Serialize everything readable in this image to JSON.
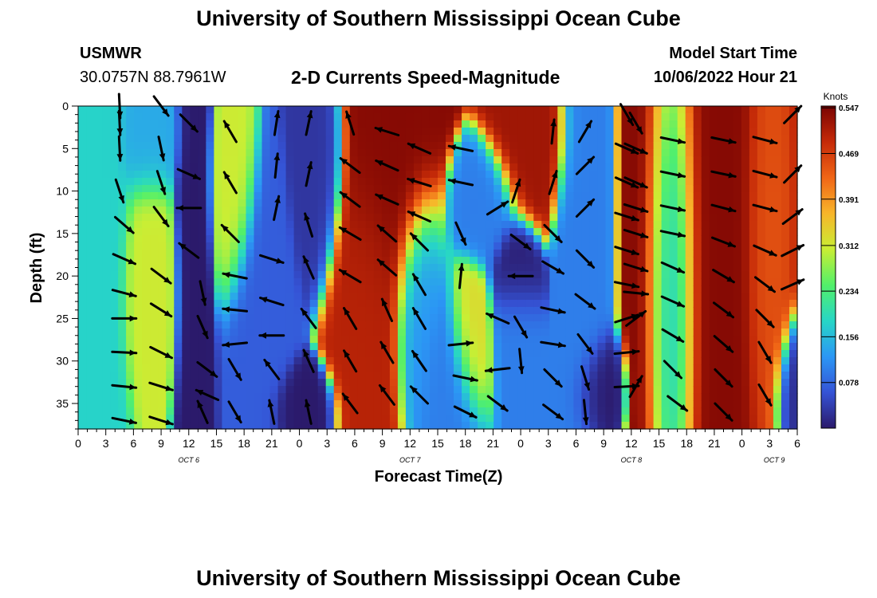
{
  "header": {
    "title": "University of Southern Mississippi Ocean Cube",
    "station": "USMWR",
    "coordinates": "30.0757N  88.7961W",
    "subtitle": "2-D Currents Speed-Magnitude",
    "model_start_label": "Model Start Time",
    "model_start_value": "10/06/2022 Hour 21",
    "footer_title": "University of Southern Mississippi Ocean Cube"
  },
  "colors": {
    "arrow": "#000000",
    "scale": [
      "#2b1a6b",
      "#3553d6",
      "#2b97f5",
      "#27d6c6",
      "#52f06a",
      "#c9ee34",
      "#f8b52a",
      "#f06516",
      "#c52a08",
      "#7a0403"
    ]
  },
  "chart_data": {
    "type": "heatmap",
    "title": "2-D Currents Speed-Magnitude",
    "xlabel": "Forecast Time(Z)",
    "ylabel": "Depth (ft)",
    "x_range": [
      0,
      78
    ],
    "y_range": [
      0,
      38
    ],
    "y_inverted": true,
    "x_tick_values": [
      0,
      3,
      6,
      9,
      12,
      15,
      18,
      21,
      24,
      27,
      30,
      33,
      36,
      39,
      42,
      45,
      48,
      51,
      54,
      57,
      60,
      63,
      66,
      69,
      72,
      75,
      78
    ],
    "x_tick_labels": [
      "0",
      "3",
      "6",
      "9",
      "12",
      "15",
      "18",
      "21",
      "0",
      "3",
      "6",
      "9",
      "12",
      "15",
      "18",
      "21",
      "0",
      "3",
      "6",
      "9",
      "12",
      "15",
      "18",
      "21",
      "0",
      "3",
      "6"
    ],
    "y_ticks": [
      0,
      5,
      10,
      15,
      20,
      25,
      30,
      35
    ],
    "date_labels": [
      {
        "x": 12,
        "text": "OCT 6"
      },
      {
        "x": 36,
        "text": "OCT 7"
      },
      {
        "x": 60,
        "text": "OCT 8"
      },
      {
        "x": 75.5,
        "text": "OCT 9"
      }
    ],
    "colorbar": {
      "label": "Knots",
      "range": [
        0.0,
        0.55
      ],
      "ticks": [
        0.078,
        0.156,
        0.234,
        0.312,
        0.391,
        0.469,
        0.547
      ],
      "tick_labels": [
        "0.078",
        "0.156",
        "0.234",
        "0.312",
        "0.391",
        "0.469",
        "0.547"
      ]
    },
    "speed_features": [
      {
        "x": 0,
        "y": 19,
        "sx": 3.0,
        "sy": 30,
        "v": 0.18
      },
      {
        "x": 8,
        "y": 22,
        "sx": 1.7,
        "sy": 9,
        "v": 0.31
      },
      {
        "x": 8,
        "y": 3,
        "sx": 2.0,
        "sy": 5,
        "v": 0.14
      },
      {
        "x": 12.5,
        "y": 20,
        "sx": 1.2,
        "sy": 30,
        "v": 0.0
      },
      {
        "x": 16.8,
        "y": 9,
        "sx": 1.4,
        "sy": 8,
        "v": 0.31
      },
      {
        "x": 19.5,
        "y": 28,
        "sx": 2.0,
        "sy": 12,
        "v": 0.07
      },
      {
        "x": 26,
        "y": 5,
        "sx": 1.6,
        "sy": 8,
        "v": 0.03
      },
      {
        "x": 24,
        "y": 36,
        "sx": 2.0,
        "sy": 3,
        "v": 0.0
      },
      {
        "x": 33.5,
        "y": 5,
        "sx": 3.0,
        "sy": 13,
        "v": 0.54
      },
      {
        "x": 31.5,
        "y": 24,
        "sx": 2.2,
        "sy": 11,
        "v": 0.5
      },
      {
        "x": 37,
        "y": 24,
        "sx": 1.6,
        "sy": 8,
        "v": 0.12
      },
      {
        "x": 40,
        "y": 32,
        "sx": 2.0,
        "sy": 6,
        "v": 0.1
      },
      {
        "x": 42.5,
        "y": 27,
        "sx": 1.4,
        "sy": 5,
        "v": 0.33
      },
      {
        "x": 44,
        "y": 12,
        "sx": 2.0,
        "sy": 4,
        "v": 0.1
      },
      {
        "x": 47.5,
        "y": 20,
        "sx": 1.5,
        "sy": 4,
        "v": 0.0
      },
      {
        "x": 47.5,
        "y": 26,
        "sx": 1.5,
        "sy": 5,
        "v": 0.1
      },
      {
        "x": 49,
        "y": 3,
        "sx": 2.4,
        "sy": 6,
        "v": 0.52
      },
      {
        "x": 54.5,
        "y": 18,
        "sx": 1.5,
        "sy": 25,
        "v": 0.1
      },
      {
        "x": 56,
        "y": 34,
        "sx": 1.4,
        "sy": 4,
        "v": 0.0
      },
      {
        "x": 69,
        "y": 15,
        "sx": 4.0,
        "sy": 28,
        "v": 0.54
      },
      {
        "x": 65,
        "y": 20,
        "sx": 1.5,
        "sy": 20,
        "v": 0.1
      },
      {
        "x": 74.5,
        "y": 15,
        "sx": 1.5,
        "sy": 18,
        "v": 0.44
      },
      {
        "x": 78,
        "y": 35,
        "sx": 1.5,
        "sy": 5,
        "v": 0.02
      }
    ],
    "current_vectors": [
      {
        "t": 4.5,
        "d": 0,
        "u": 0.05,
        "v": -0.95
      },
      {
        "t": 4.5,
        "d": 2,
        "u": 0.05,
        "v": -0.95
      },
      {
        "t": 4.5,
        "d": 5,
        "u": 0.05,
        "v": -0.95
      },
      {
        "t": 4.5,
        "d": 10,
        "u": 0.3,
        "v": -0.9
      },
      {
        "t": 5.0,
        "d": 14,
        "u": 0.75,
        "v": -0.65
      },
      {
        "t": 5.0,
        "d": 18,
        "u": 0.9,
        "v": -0.4
      },
      {
        "t": 5.0,
        "d": 22,
        "u": 0.95,
        "v": -0.25
      },
      {
        "t": 5.0,
        "d": 25,
        "u": 1.0,
        "v": 0.0
      },
      {
        "t": 5.0,
        "d": 29,
        "u": 1.0,
        "v": -0.05
      },
      {
        "t": 5.0,
        "d": 33,
        "u": 1.0,
        "v": -0.1
      },
      {
        "t": 5.0,
        "d": 37,
        "u": 0.95,
        "v": -0.2
      },
      {
        "t": 9.0,
        "d": 0,
        "u": 0.6,
        "v": -0.8
      },
      {
        "t": 9.0,
        "d": 5,
        "u": 0.2,
        "v": -0.95
      },
      {
        "t": 9.0,
        "d": 9,
        "u": 0.3,
        "v": -0.9
      },
      {
        "t": 9.0,
        "d": 13,
        "u": 0.6,
        "v": -0.8
      },
      {
        "t": 9.0,
        "d": 20,
        "u": 0.8,
        "v": -0.6
      },
      {
        "t": 9.0,
        "d": 24,
        "u": 0.8,
        "v": -0.5
      },
      {
        "t": 9.0,
        "d": 29,
        "u": 0.9,
        "v": -0.45
      },
      {
        "t": 9.0,
        "d": 33,
        "u": 0.95,
        "v": -0.3
      },
      {
        "t": 9.0,
        "d": 37,
        "u": 0.95,
        "v": -0.3
      },
      {
        "t": 12.0,
        "d": 2,
        "u": 0.7,
        "v": -0.7
      },
      {
        "t": 12.0,
        "d": 8,
        "u": 0.9,
        "v": -0.4
      },
      {
        "t": 12.0,
        "d": 12,
        "u": -1.0,
        "v": 0.0
      },
      {
        "t": 12.0,
        "d": 17,
        "u": -0.8,
        "v": 0.6
      },
      {
        "t": 13.5,
        "d": 22,
        "u": 0.2,
        "v": -0.95
      },
      {
        "t": 13.5,
        "d": 26,
        "u": 0.4,
        "v": -0.9
      },
      {
        "t": 14.0,
        "d": 31,
        "u": 0.8,
        "v": -0.6
      },
      {
        "t": 14.0,
        "d": 34,
        "u": -0.9,
        "v": 0.4
      },
      {
        "t": 13.5,
        "d": 36,
        "u": -0.4,
        "v": 0.9
      },
      {
        "t": 16.5,
        "d": 3,
        "u": -0.5,
        "v": 0.85
      },
      {
        "t": 16.5,
        "d": 9,
        "u": -0.5,
        "v": 0.85
      },
      {
        "t": 16.5,
        "d": 15,
        "u": -0.7,
        "v": 0.7
      },
      {
        "t": 17.0,
        "d": 20,
        "u": -1.0,
        "v": 0.2
      },
      {
        "t": 17.0,
        "d": 24,
        "u": -1.0,
        "v": 0.1
      },
      {
        "t": 17.0,
        "d": 28,
        "u": -1.0,
        "v": -0.1
      },
      {
        "t": 17.0,
        "d": 31,
        "u": 0.5,
        "v": -0.85
      },
      {
        "t": 17.0,
        "d": 36,
        "u": 0.5,
        "v": -0.85
      },
      {
        "t": 21.5,
        "d": 2,
        "u": 0.15,
        "v": 0.98
      },
      {
        "t": 21.5,
        "d": 7,
        "u": 0.1,
        "v": 0.98
      },
      {
        "t": 21.5,
        "d": 12,
        "u": 0.2,
        "v": 0.97
      },
      {
        "t": 21.0,
        "d": 18,
        "u": 0.95,
        "v": -0.3
      },
      {
        "t": 21.0,
        "d": 23,
        "u": -0.95,
        "v": 0.3
      },
      {
        "t": 21.0,
        "d": 27,
        "u": -1.0,
        "v": 0.0
      },
      {
        "t": 21.0,
        "d": 31,
        "u": -0.6,
        "v": 0.8
      },
      {
        "t": 21.0,
        "d": 36,
        "u": -0.2,
        "v": 0.95
      },
      {
        "t": 25.0,
        "d": 2,
        "u": 0.2,
        "v": 0.95
      },
      {
        "t": 25.0,
        "d": 8,
        "u": 0.2,
        "v": 0.95
      },
      {
        "t": 25.0,
        "d": 14,
        "u": -0.3,
        "v": 0.95
      },
      {
        "t": 25.0,
        "d": 19,
        "u": -0.4,
        "v": 0.9
      },
      {
        "t": 25.0,
        "d": 25,
        "u": -0.6,
        "v": 0.8
      },
      {
        "t": 25.0,
        "d": 30,
        "u": -0.4,
        "v": 0.9
      },
      {
        "t": 25.0,
        "d": 36,
        "u": -0.2,
        "v": 0.95
      },
      {
        "t": 29.5,
        "d": 2,
        "u": -0.3,
        "v": 0.95
      },
      {
        "t": 29.5,
        "d": 7,
        "u": -0.8,
        "v": 0.6
      },
      {
        "t": 29.5,
        "d": 11,
        "u": -0.8,
        "v": 0.6
      },
      {
        "t": 29.5,
        "d": 15,
        "u": -0.85,
        "v": 0.5
      },
      {
        "t": 29.5,
        "d": 20,
        "u": -0.85,
        "v": 0.5
      },
      {
        "t": 29.5,
        "d": 25,
        "u": -0.5,
        "v": 0.85
      },
      {
        "t": 29.5,
        "d": 30,
        "u": -0.5,
        "v": 0.85
      },
      {
        "t": 29.5,
        "d": 35,
        "u": -0.6,
        "v": 0.8
      },
      {
        "t": 33.5,
        "d": 3,
        "u": -0.95,
        "v": 0.3
      },
      {
        "t": 33.5,
        "d": 7,
        "u": -0.9,
        "v": 0.4
      },
      {
        "t": 33.5,
        "d": 11,
        "u": -0.9,
        "v": 0.4
      },
      {
        "t": 33.5,
        "d": 15,
        "u": -0.75,
        "v": 0.65
      },
      {
        "t": 33.5,
        "d": 19,
        "u": -0.75,
        "v": 0.65
      },
      {
        "t": 33.5,
        "d": 24,
        "u": -0.4,
        "v": 0.9
      },
      {
        "t": 33.5,
        "d": 29,
        "u": -0.5,
        "v": 0.85
      },
      {
        "t": 33.5,
        "d": 34,
        "u": -0.6,
        "v": 0.8
      },
      {
        "t": 37.0,
        "d": 5,
        "u": -0.9,
        "v": 0.4
      },
      {
        "t": 37.0,
        "d": 9,
        "u": -0.95,
        "v": 0.3
      },
      {
        "t": 37.0,
        "d": 13,
        "u": -0.9,
        "v": 0.4
      },
      {
        "t": 37.0,
        "d": 16,
        "u": -0.7,
        "v": 0.7
      },
      {
        "t": 37.0,
        "d": 21,
        "u": -0.5,
        "v": 0.85
      },
      {
        "t": 37.0,
        "d": 25,
        "u": -0.5,
        "v": 0.85
      },
      {
        "t": 37.0,
        "d": 30,
        "u": -0.55,
        "v": 0.8
      },
      {
        "t": 37.0,
        "d": 34,
        "u": -0.7,
        "v": 0.7
      },
      {
        "t": 41.5,
        "d": 5,
        "u": -0.95,
        "v": 0.2
      },
      {
        "t": 41.5,
        "d": 9,
        "u": -0.95,
        "v": 0.2
      },
      {
        "t": 41.5,
        "d": 15,
        "u": 0.4,
        "v": -0.9
      },
      {
        "t": 41.5,
        "d": 20,
        "u": 0.1,
        "v": 1.0
      },
      {
        "t": 41.5,
        "d": 28,
        "u": 0.95,
        "v": 0.1
      },
      {
        "t": 42.0,
        "d": 32,
        "u": 0.95,
        "v": -0.2
      },
      {
        "t": 42.0,
        "d": 36,
        "u": 0.9,
        "v": -0.45
      },
      {
        "t": 45.5,
        "d": 12,
        "u": 0.8,
        "v": 0.5
      },
      {
        "t": 45.5,
        "d": 25,
        "u": -0.9,
        "v": 0.4
      },
      {
        "t": 45.5,
        "d": 31,
        "u": -0.9,
        "v": -0.1
      },
      {
        "t": 45.5,
        "d": 35,
        "u": 0.8,
        "v": -0.6
      },
      {
        "t": 47.5,
        "d": 10,
        "u": 0.3,
        "v": 0.9
      },
      {
        "t": 48.0,
        "d": 16,
        "u": 0.8,
        "v": -0.6
      },
      {
        "t": 48.0,
        "d": 20,
        "u": -1.0,
        "v": 0.0
      },
      {
        "t": 48.0,
        "d": 26,
        "u": 0.5,
        "v": -0.85
      },
      {
        "t": 48.0,
        "d": 30,
        "u": 0.1,
        "v": -0.99
      },
      {
        "t": 51.5,
        "d": 3,
        "u": 0.1,
        "v": 0.99
      },
      {
        "t": 51.5,
        "d": 9,
        "u": 0.3,
        "v": 0.95
      },
      {
        "t": 51.5,
        "d": 15,
        "u": 0.7,
        "v": -0.7
      },
      {
        "t": 51.5,
        "d": 19,
        "u": 0.85,
        "v": -0.5
      },
      {
        "t": 51.5,
        "d": 24,
        "u": 0.95,
        "v": -0.2
      },
      {
        "t": 51.5,
        "d": 28,
        "u": 0.95,
        "v": -0.15
      },
      {
        "t": 51.5,
        "d": 32,
        "u": 0.7,
        "v": -0.7
      },
      {
        "t": 51.5,
        "d": 36,
        "u": 0.8,
        "v": -0.6
      },
      {
        "t": 55.0,
        "d": 3,
        "u": 0.5,
        "v": 0.85
      },
      {
        "t": 55.0,
        "d": 7,
        "u": 0.7,
        "v": 0.7
      },
      {
        "t": 55.0,
        "d": 12,
        "u": 0.7,
        "v": 0.7
      },
      {
        "t": 55.0,
        "d": 18,
        "u": 0.7,
        "v": -0.7
      },
      {
        "t": 55.0,
        "d": 23,
        "u": 0.8,
        "v": -0.6
      },
      {
        "t": 55.0,
        "d": 28,
        "u": 0.6,
        "v": -0.8
      },
      {
        "t": 55.0,
        "d": 32,
        "u": 0.3,
        "v": -0.95
      },
      {
        "t": 55.0,
        "d": 36,
        "u": 0.1,
        "v": -0.99
      },
      {
        "t": 59.5,
        "d": 1,
        "u": 0.5,
        "v": -0.85
      },
      {
        "t": 59.5,
        "d": 5,
        "u": 0.9,
        "v": -0.4
      },
      {
        "t": 59.5,
        "d": 9,
        "u": 0.9,
        "v": -0.4
      },
      {
        "t": 59.5,
        "d": 13,
        "u": 0.95,
        "v": -0.3
      },
      {
        "t": 59.5,
        "d": 17,
        "u": 0.95,
        "v": -0.3
      },
      {
        "t": 59.5,
        "d": 21,
        "u": 0.98,
        "v": -0.2
      },
      {
        "t": 59.5,
        "d": 25,
        "u": 0.95,
        "v": 0.3
      },
      {
        "t": 59.5,
        "d": 29,
        "u": 0.99,
        "v": 0.1
      },
      {
        "t": 59.5,
        "d": 33,
        "u": 0.99,
        "v": 0.05
      },
      {
        "t": 60.5,
        "d": 2,
        "u": 0.5,
        "v": -0.85
      },
      {
        "t": 60.5,
        "d": 5,
        "u": 0.9,
        "v": -0.4
      },
      {
        "t": 60.5,
        "d": 9,
        "u": 0.9,
        "v": -0.4
      },
      {
        "t": 60.5,
        "d": 12,
        "u": 0.95,
        "v": -0.3
      },
      {
        "t": 60.5,
        "d": 15,
        "u": 0.95,
        "v": -0.3
      },
      {
        "t": 60.5,
        "d": 19,
        "u": 0.95,
        "v": -0.3
      },
      {
        "t": 60.5,
        "d": 22,
        "u": 0.99,
        "v": -0.1
      },
      {
        "t": 60.5,
        "d": 25,
        "u": 0.8,
        "v": 0.6
      },
      {
        "t": 60.5,
        "d": 33,
        "u": 0.5,
        "v": 0.85
      },
      {
        "t": 64.5,
        "d": 4,
        "u": 0.95,
        "v": -0.2
      },
      {
        "t": 64.5,
        "d": 8,
        "u": 0.95,
        "v": -0.2
      },
      {
        "t": 64.5,
        "d": 12,
        "u": 0.95,
        "v": -0.2
      },
      {
        "t": 64.5,
        "d": 15,
        "u": 0.95,
        "v": -0.2
      },
      {
        "t": 64.5,
        "d": 19,
        "u": 0.9,
        "v": -0.4
      },
      {
        "t": 64.5,
        "d": 23,
        "u": 0.9,
        "v": -0.4
      },
      {
        "t": 64.5,
        "d": 27,
        "u": 0.85,
        "v": -0.5
      },
      {
        "t": 64.5,
        "d": 31,
        "u": 0.7,
        "v": -0.7
      },
      {
        "t": 65.0,
        "d": 35,
        "u": 0.8,
        "v": -0.6
      },
      {
        "t": 70.0,
        "d": 4,
        "u": 0.95,
        "v": -0.2
      },
      {
        "t": 70.0,
        "d": 8,
        "u": 0.95,
        "v": -0.2
      },
      {
        "t": 70.0,
        "d": 12,
        "u": 0.95,
        "v": -0.25
      },
      {
        "t": 70.0,
        "d": 16,
        "u": 0.9,
        "v": -0.35
      },
      {
        "t": 70.0,
        "d": 20,
        "u": 0.85,
        "v": -0.5
      },
      {
        "t": 70.0,
        "d": 24,
        "u": 0.8,
        "v": -0.6
      },
      {
        "t": 70.0,
        "d": 28,
        "u": 0.75,
        "v": -0.65
      },
      {
        "t": 70.0,
        "d": 32,
        "u": 0.7,
        "v": -0.7
      },
      {
        "t": 70.0,
        "d": 36,
        "u": 0.7,
        "v": -0.7
      },
      {
        "t": 74.5,
        "d": 4,
        "u": 0.95,
        "v": -0.25
      },
      {
        "t": 74.5,
        "d": 8,
        "u": 0.95,
        "v": -0.25
      },
      {
        "t": 74.5,
        "d": 12,
        "u": 0.95,
        "v": -0.25
      },
      {
        "t": 74.5,
        "d": 17,
        "u": 0.9,
        "v": -0.4
      },
      {
        "t": 74.5,
        "d": 21,
        "u": 0.8,
        "v": -0.6
      },
      {
        "t": 74.5,
        "d": 25,
        "u": 0.7,
        "v": -0.7
      },
      {
        "t": 74.5,
        "d": 29,
        "u": 0.5,
        "v": -0.85
      },
      {
        "t": 74.5,
        "d": 34,
        "u": 0.5,
        "v": -0.85
      },
      {
        "t": 77.5,
        "d": 1,
        "u": 0.7,
        "v": 0.7
      },
      {
        "t": 77.5,
        "d": 8,
        "u": 0.7,
        "v": 0.7
      },
      {
        "t": 77.5,
        "d": 13,
        "u": 0.8,
        "v": 0.6
      },
      {
        "t": 77.5,
        "d": 17,
        "u": 0.9,
        "v": 0.45
      },
      {
        "t": 77.5,
        "d": 21,
        "u": 0.9,
        "v": 0.4
      }
    ]
  }
}
